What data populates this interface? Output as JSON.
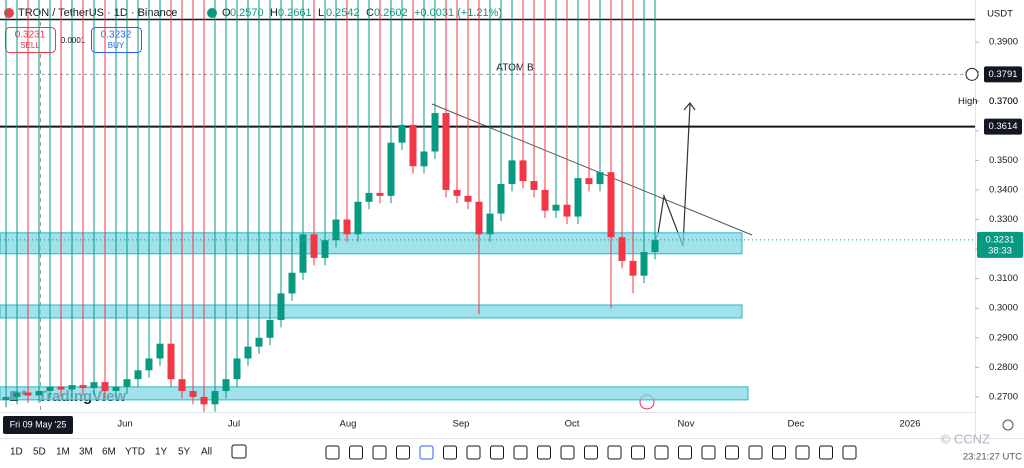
{
  "header": {
    "symbol": "TRON / TetherUS · 1D · Binance",
    "ohlc": [
      {
        "label": "O",
        "value": "0.2570"
      },
      {
        "label": "H",
        "value": "0.2661"
      },
      {
        "label": "L",
        "value": "0.2542"
      },
      {
        "label": "C",
        "value": "0.2602"
      }
    ],
    "change": "+0.0031 (+1.21%)"
  },
  "trade": {
    "sell_price": "0.3231",
    "sell": "SELL",
    "spread": "0.0001",
    "buy_price": "0.3232",
    "buy": "BUY"
  },
  "currency": "USDT",
  "annotation": "ATOM B",
  "logo": "TradingView",
  "crosshair_date": "Fri 09 May '25",
  "time_labels": [
    "Jun",
    "Jul",
    "Aug",
    "Sep",
    "Oct",
    "Nov",
    "Dec",
    "2026"
  ],
  "timeframes": [
    "1D",
    "5D",
    "1M",
    "3M",
    "6M",
    "YTD",
    "1Y",
    "5Y",
    "All"
  ],
  "clock": "23:21:27 UTC",
  "watermark": "© CCNZ",
  "chart_data": {
    "type": "candlestick",
    "up_color": "#089981",
    "down_color": "#f23645",
    "ylim": [
      0.2649,
      0.3968
    ],
    "yticks": [
      {
        "value": 0.39,
        "label": "0.3900"
      },
      {
        "value": 0.38,
        "label": "0.3800"
      },
      {
        "value": 0.37,
        "label": "0.3700"
      },
      {
        "value": 0.36,
        "label": "0.3600"
      },
      {
        "value": 0.35,
        "label": "0.3500"
      },
      {
        "value": 0.34,
        "label": "0.3400"
      },
      {
        "value": 0.33,
        "label": "0.3300"
      },
      {
        "value": 0.32,
        "label": "0.3200"
      },
      {
        "value": 0.31,
        "label": "0.3100"
      },
      {
        "value": 0.3,
        "label": "0.3000"
      },
      {
        "value": 0.29,
        "label": "0.2900"
      },
      {
        "value": 0.28,
        "label": "0.2800"
      },
      {
        "value": 0.27,
        "label": "0.2700"
      }
    ],
    "open": [
      0.269,
      0.27,
      0.2715,
      0.2705,
      0.272,
      0.2735,
      0.2725,
      0.274,
      0.273,
      0.275,
      0.272,
      0.2735,
      0.276,
      0.279,
      0.283,
      0.288,
      0.276,
      0.272,
      0.27,
      0.2675,
      0.272,
      0.276,
      0.283,
      0.287,
      0.29,
      0.296,
      0.305,
      0.312,
      0.325,
      0.317,
      0.323,
      0.33,
      0.325,
      0.336,
      0.339,
      0.338,
      0.356,
      0.362,
      0.348,
      0.353,
      0.366,
      0.34,
      0.338,
      0.336,
      0.325,
      0.332,
      0.342,
      0.35,
      0.343,
      0.34,
      0.333,
      0.335,
      0.331,
      0.344,
      0.342,
      0.346,
      0.324,
      0.316,
      0.311,
      0.319
    ],
    "high": {
      "text": "High",
      "value": 0.37,
      "label": "0.3700"
    },
    "low": [
      0.2665,
      0.2675,
      0.268,
      0.268,
      0.2695,
      0.27,
      0.27,
      0.2705,
      0.2705,
      0.2695,
      0.2695,
      0.271,
      0.2735,
      0.2765,
      0.2805,
      0.2735,
      0.2695,
      0.2675,
      0.265,
      0.265,
      0.2695,
      0.2735,
      0.2805,
      0.2845,
      0.2875,
      0.2935,
      0.3025,
      0.3095,
      0.3145,
      0.3145,
      0.3205,
      0.3225,
      0.3225,
      0.3335,
      0.3355,
      0.3355,
      0.3535,
      0.3455,
      0.3455,
      0.3505,
      0.3375,
      0.3355,
      0.3335,
      0.298,
      0.3225,
      0.3295,
      0.3395,
      0.3405,
      0.3375,
      0.3305,
      0.3305,
      0.3285,
      0.3285,
      0.3395,
      0.3395,
      0.3,
      0.3135,
      0.305,
      0.3085,
      0.3165
    ],
    "close": [
      0.27,
      0.2715,
      0.2705,
      0.272,
      0.2735,
      0.2725,
      0.274,
      0.273,
      0.275,
      0.272,
      0.2735,
      0.276,
      0.279,
      0.283,
      0.288,
      0.276,
      0.272,
      0.27,
      0.2675,
      0.272,
      0.276,
      0.283,
      0.287,
      0.29,
      0.296,
      0.305,
      0.312,
      0.325,
      0.317,
      0.323,
      0.33,
      0.325,
      0.336,
      0.339,
      0.338,
      0.356,
      0.362,
      0.348,
      0.353,
      0.366,
      0.34,
      0.338,
      0.336,
      0.325,
      0.332,
      0.342,
      0.35,
      0.343,
      0.34,
      0.333,
      0.335,
      0.331,
      0.344,
      0.342,
      0.346,
      0.324,
      0.316,
      0.311,
      0.319,
      0.3231
    ],
    "zones": [
      {
        "top": 0.3255,
        "bottom": 0.3184
      },
      {
        "top": 0.3011,
        "bottom": 0.2967
      },
      {
        "top": 0.2734,
        "bottom": 0.269
      }
    ],
    "hline": {
      "value": 0.3614,
      "label": "0.3614"
    },
    "dashed_line": {
      "value": 0.3791,
      "label": "0.3791"
    },
    "last": {
      "value": 0.3231,
      "label": "0.3231",
      "countdown": "38:33"
    }
  }
}
